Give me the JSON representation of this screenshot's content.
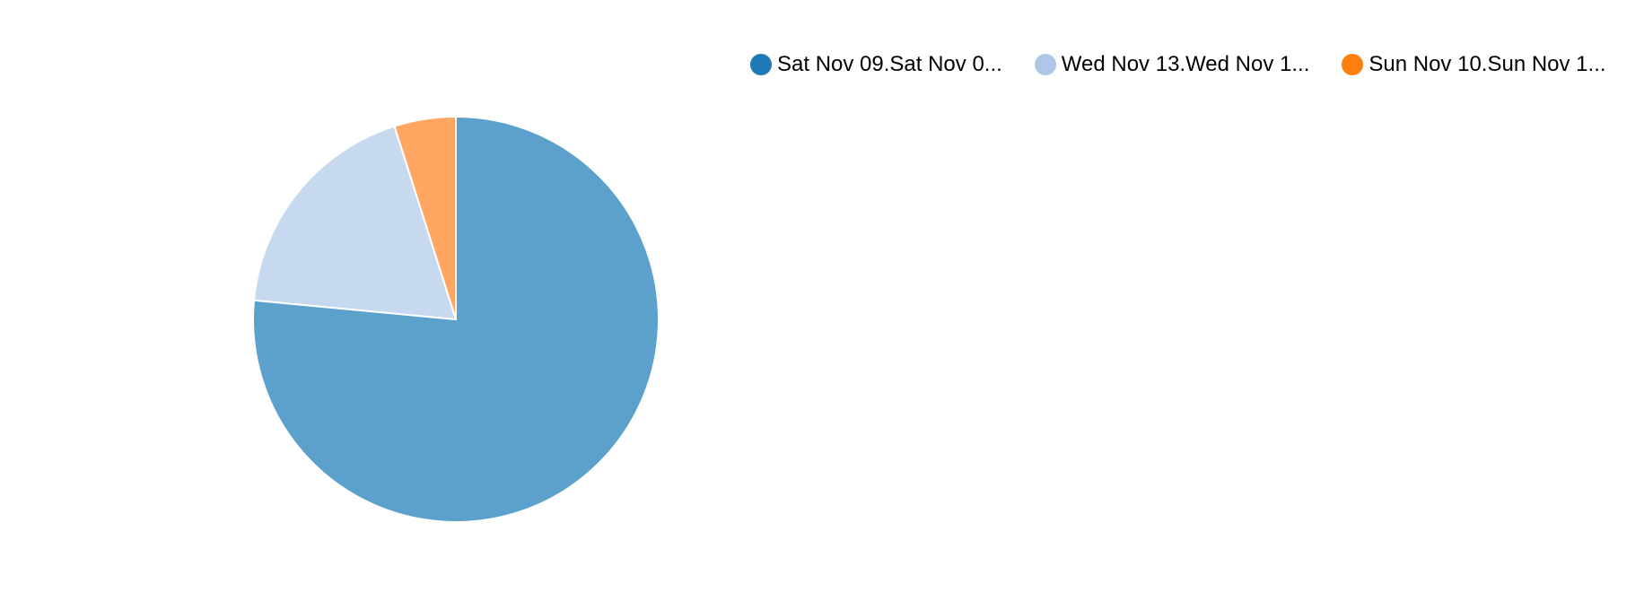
{
  "chart_data": {
    "type": "pie",
    "slices": [
      {
        "label": "Sat Nov 09.Sat Nov 0...",
        "value": 76.5,
        "color": "#5ba1cb",
        "legend_color": "#1f77b4"
      },
      {
        "label": "Wed Nov 13.Wed Nov 1...",
        "value": 18.6,
        "color": "#c6d9ef",
        "legend_color": "#aec7e8"
      },
      {
        "label": "Sun Nov 10.Sun Nov 1...",
        "value": 4.9,
        "color": "#ffa762",
        "legend_color": "#ff7f0e"
      }
    ],
    "legend_position": "top-right"
  }
}
